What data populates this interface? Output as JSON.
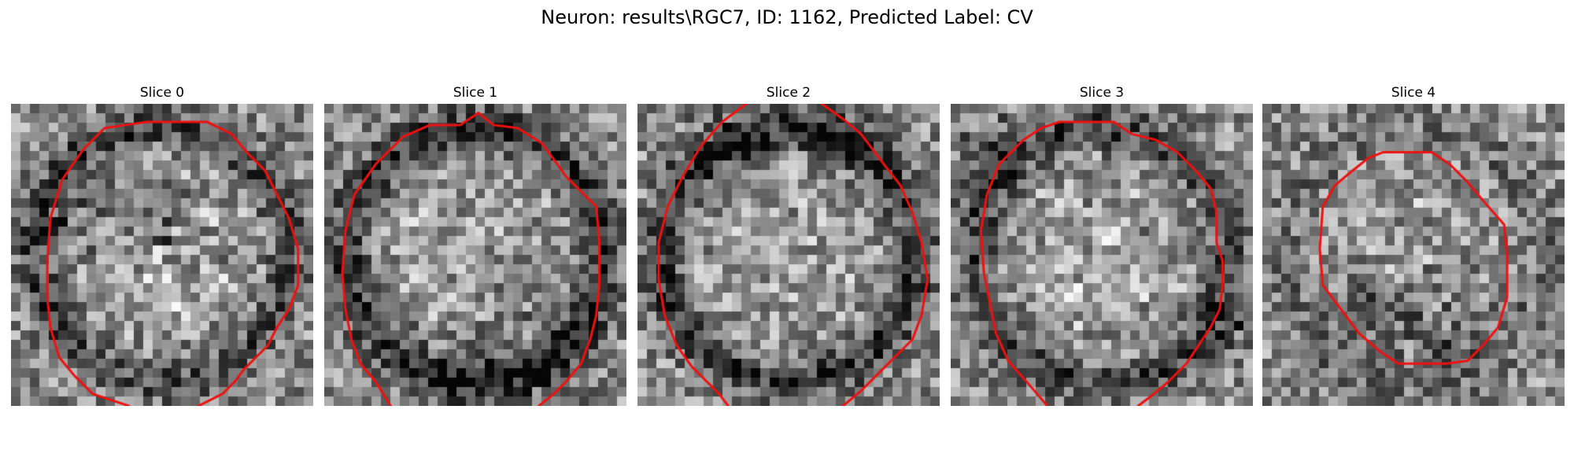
{
  "figure": {
    "title": "Neuron: results\\RGC7, ID: 1162, Predicted Label: CV",
    "contour_color": "#ee1111"
  },
  "panels": [
    {
      "title": "Slice 0",
      "texture": {
        "seed": 11,
        "rim_darkness": 0.28,
        "blob_amount": 0.42,
        "dark_spots": [
          [
            0.2,
            0.35,
            0.18
          ],
          [
            0.55,
            0.4,
            0.12
          ]
        ]
      },
      "contour": [
        [
          0.45,
          0.06
        ],
        [
          0.65,
          0.06
        ],
        [
          0.73,
          0.1
        ],
        [
          0.78,
          0.16
        ],
        [
          0.84,
          0.22
        ],
        [
          0.88,
          0.3
        ],
        [
          0.92,
          0.38
        ],
        [
          0.95,
          0.48
        ],
        [
          0.95,
          0.6
        ],
        [
          0.92,
          0.68
        ],
        [
          0.88,
          0.74
        ],
        [
          0.85,
          0.8
        ],
        [
          0.81,
          0.84
        ],
        [
          0.77,
          0.88
        ],
        [
          0.74,
          0.92
        ],
        [
          0.7,
          0.96
        ],
        [
          0.62,
          1.0
        ]
      ],
      "contour_secondary": [
        [
          0.39,
          1.0
        ],
        [
          0.33,
          0.98
        ],
        [
          0.27,
          0.96
        ],
        [
          0.21,
          0.9
        ],
        [
          0.16,
          0.84
        ],
        [
          0.13,
          0.74
        ],
        [
          0.12,
          0.64
        ],
        [
          0.12,
          0.52
        ],
        [
          0.13,
          0.38
        ],
        [
          0.17,
          0.25
        ],
        [
          0.24,
          0.15
        ],
        [
          0.31,
          0.08
        ],
        [
          0.38,
          0.07
        ],
        [
          0.45,
          0.06
        ]
      ]
    },
    {
      "title": "Slice 1",
      "texture": {
        "seed": 23,
        "rim_darkness": 0.38,
        "blob_amount": 0.36,
        "dark_spots": [
          [
            0.7,
            0.85,
            0.16
          ],
          [
            0.42,
            0.88,
            0.14
          ]
        ]
      },
      "contour": [
        [
          0.35,
          0.07
        ],
        [
          0.45,
          0.07
        ],
        [
          0.51,
          0.03
        ],
        [
          0.56,
          0.07
        ],
        [
          0.64,
          0.08
        ],
        [
          0.72,
          0.13
        ],
        [
          0.8,
          0.24
        ],
        [
          0.86,
          0.3
        ],
        [
          0.9,
          0.34
        ],
        [
          0.91,
          0.45
        ],
        [
          0.91,
          0.6
        ],
        [
          0.9,
          0.7
        ],
        [
          0.88,
          0.78
        ],
        [
          0.85,
          0.86
        ],
        [
          0.8,
          0.92
        ],
        [
          0.76,
          0.96
        ],
        [
          0.71,
          1.0
        ]
      ],
      "contour_secondary": [
        [
          0.22,
          1.0
        ],
        [
          0.17,
          0.92
        ],
        [
          0.12,
          0.86
        ],
        [
          0.09,
          0.78
        ],
        [
          0.07,
          0.68
        ],
        [
          0.06,
          0.56
        ],
        [
          0.07,
          0.42
        ],
        [
          0.1,
          0.3
        ],
        [
          0.17,
          0.2
        ],
        [
          0.26,
          0.11
        ],
        [
          0.35,
          0.07
        ]
      ]
    },
    {
      "title": "Slice 2",
      "texture": {
        "seed": 37,
        "rim_darkness": 0.34,
        "blob_amount": 0.3,
        "dark_spots": [
          [
            0.3,
            0.15,
            0.14
          ],
          [
            0.72,
            0.12,
            0.12
          ]
        ]
      },
      "contour": [
        [
          0.36,
          0.0
        ],
        [
          0.28,
          0.06
        ],
        [
          0.21,
          0.14
        ],
        [
          0.15,
          0.24
        ],
        [
          0.1,
          0.34
        ],
        [
          0.07,
          0.46
        ],
        [
          0.07,
          0.58
        ],
        [
          0.09,
          0.7
        ],
        [
          0.13,
          0.8
        ],
        [
          0.18,
          0.87
        ],
        [
          0.23,
          0.92
        ],
        [
          0.27,
          0.96
        ],
        [
          0.3,
          1.0
        ]
      ],
      "contour_secondary": [
        [
          0.61,
          0.0
        ],
        [
          0.68,
          0.05
        ],
        [
          0.74,
          0.1
        ],
        [
          0.8,
          0.18
        ],
        [
          0.87,
          0.27
        ],
        [
          0.91,
          0.36
        ],
        [
          0.94,
          0.46
        ],
        [
          0.96,
          0.58
        ],
        [
          0.94,
          0.7
        ],
        [
          0.91,
          0.78
        ],
        [
          0.85,
          0.84
        ],
        [
          0.79,
          0.9
        ],
        [
          0.74,
          0.95
        ],
        [
          0.68,
          1.0
        ]
      ]
    },
    {
      "title": "Slice 3",
      "texture": {
        "seed": 51,
        "rim_darkness": 0.3,
        "blob_amount": 0.38,
        "dark_spots": [
          [
            0.1,
            0.15,
            0.16
          ],
          [
            0.92,
            0.75,
            0.12
          ]
        ]
      },
      "contour": [
        [
          0.36,
          0.06
        ],
        [
          0.54,
          0.06
        ],
        [
          0.6,
          0.1
        ],
        [
          0.68,
          0.12
        ],
        [
          0.75,
          0.16
        ],
        [
          0.81,
          0.22
        ],
        [
          0.86,
          0.28
        ],
        [
          0.88,
          0.36
        ],
        [
          0.88,
          0.46
        ],
        [
          0.9,
          0.52
        ],
        [
          0.9,
          0.6
        ],
        [
          0.89,
          0.68
        ],
        [
          0.86,
          0.74
        ],
        [
          0.82,
          0.8
        ],
        [
          0.78,
          0.86
        ],
        [
          0.72,
          0.92
        ],
        [
          0.66,
          0.97
        ],
        [
          0.62,
          1.0
        ]
      ],
      "contour_secondary": [
        [
          0.32,
          1.0
        ],
        [
          0.26,
          0.93
        ],
        [
          0.19,
          0.85
        ],
        [
          0.15,
          0.76
        ],
        [
          0.13,
          0.66
        ],
        [
          0.11,
          0.56
        ],
        [
          0.1,
          0.42
        ],
        [
          0.12,
          0.3
        ],
        [
          0.16,
          0.2
        ],
        [
          0.24,
          0.12
        ],
        [
          0.3,
          0.08
        ],
        [
          0.36,
          0.06
        ]
      ]
    },
    {
      "title": "Slice 4",
      "texture": {
        "seed": 67,
        "rim_darkness": 0.12,
        "blob_amount": 0.26,
        "dark_spots": [
          [
            0.55,
            0.72,
            0.2
          ],
          [
            0.3,
            0.7,
            0.12
          ]
        ]
      },
      "contour": [
        [
          0.4,
          0.16
        ],
        [
          0.56,
          0.16
        ],
        [
          0.62,
          0.2
        ],
        [
          0.68,
          0.26
        ],
        [
          0.73,
          0.32
        ],
        [
          0.8,
          0.4
        ],
        [
          0.81,
          0.5
        ],
        [
          0.81,
          0.64
        ],
        [
          0.78,
          0.74
        ],
        [
          0.73,
          0.8
        ],
        [
          0.68,
          0.85
        ],
        [
          0.61,
          0.86
        ],
        [
          0.45,
          0.86
        ],
        [
          0.39,
          0.82
        ],
        [
          0.32,
          0.76
        ],
        [
          0.26,
          0.68
        ],
        [
          0.2,
          0.6
        ],
        [
          0.19,
          0.48
        ],
        [
          0.2,
          0.34
        ],
        [
          0.24,
          0.27
        ],
        [
          0.3,
          0.22
        ],
        [
          0.35,
          0.18
        ],
        [
          0.4,
          0.16
        ]
      ],
      "contour_secondary": []
    }
  ]
}
